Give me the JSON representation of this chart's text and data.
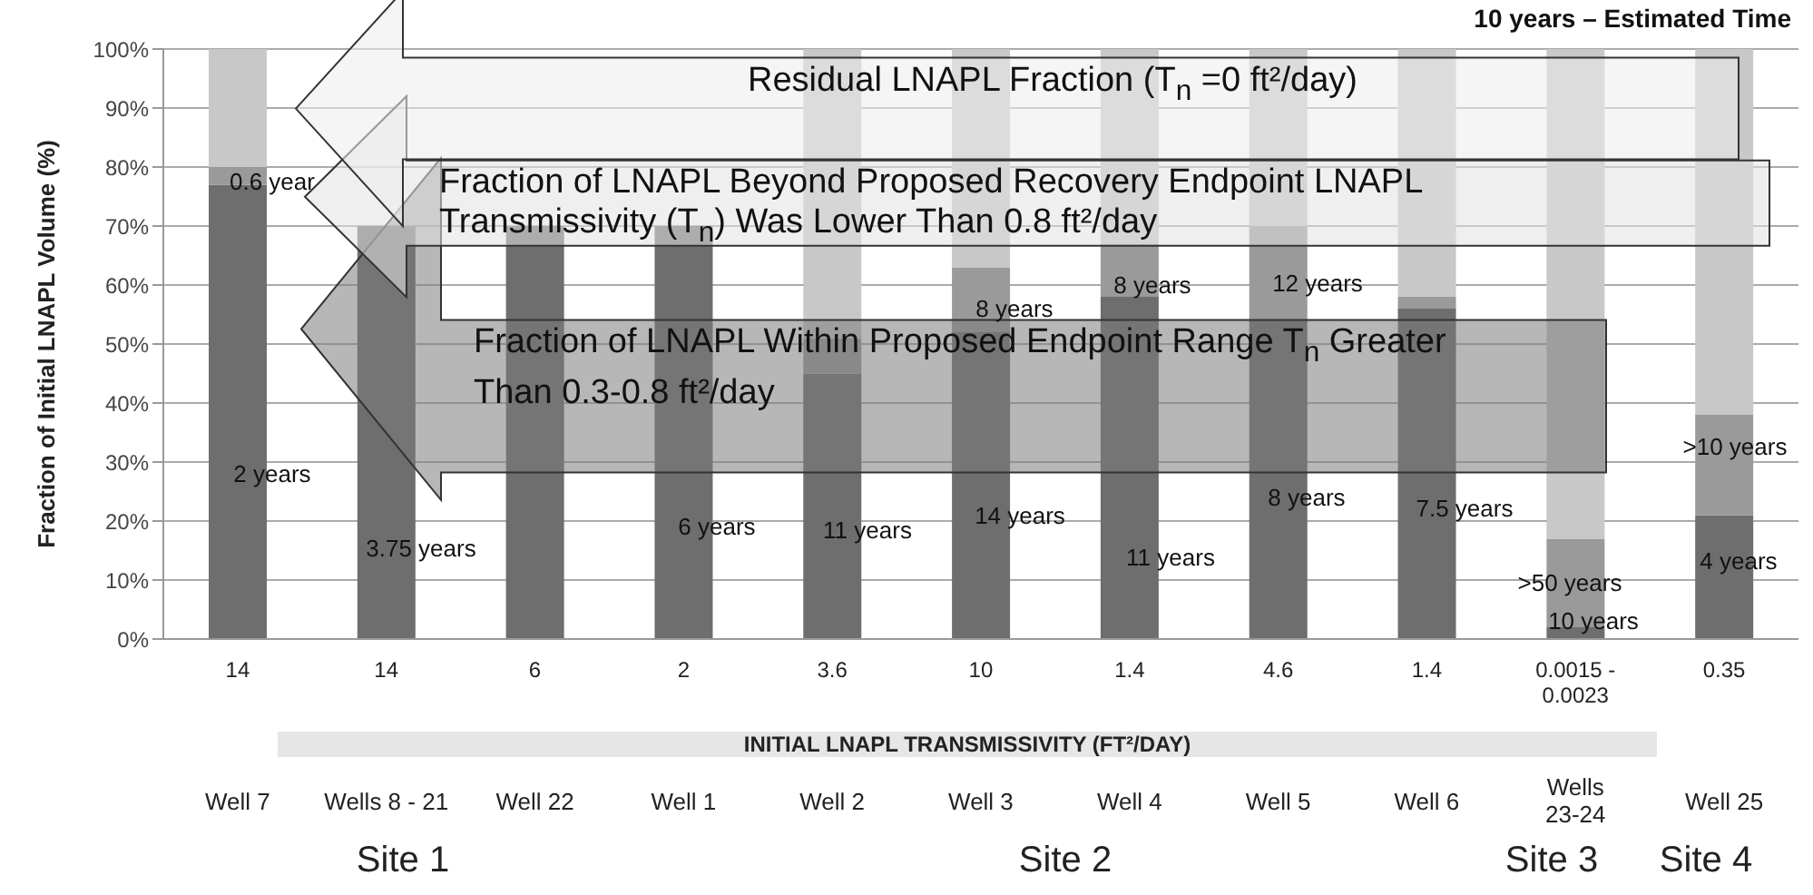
{
  "chart_data": {
    "type": "bar",
    "stacked": true,
    "title": "10 years – Estimated Time",
    "xlabel": "INITIAL LNAPL TRANSMISSIVITY (FT²/DAY)",
    "ylabel": "Fraction of  Initial LNAPL Volume (%)",
    "categories": [
      "Well 7",
      "Wells 8 - 21",
      "Well 22",
      "Well 1",
      "Well 2",
      "Well 3",
      "Well 4",
      "Well 5",
      "Well 6",
      "Wells 23-24",
      "Well 25"
    ],
    "series": [
      {
        "color": "#6e6e6e",
        "values": [
          77,
          70,
          70,
          70,
          45,
          52,
          58,
          54,
          56,
          2,
          21
        ]
      },
      {
        "color": "#9a9a9a",
        "values": [
          3,
          null,
          null,
          null,
          6,
          11,
          9,
          16,
          2,
          15,
          17
        ]
      },
      {
        "color": "#c8c8c8",
        "values": [
          20,
          null,
          null,
          null,
          49,
          37,
          33,
          30,
          42,
          83,
          62
        ]
      }
    ],
    "ylim": [
      0,
      100
    ],
    "yticks": [
      {
        "value": 0,
        "label": "0%"
      },
      {
        "value": 10,
        "label": "10%"
      },
      {
        "value": 20,
        "label": "20%"
      },
      {
        "value": 30,
        "label": "30%"
      },
      {
        "value": 40,
        "label": "40%"
      },
      {
        "value": 50,
        "label": "50%"
      },
      {
        "value": 60,
        "label": "60%"
      },
      {
        "value": 70,
        "label": "70%"
      },
      {
        "value": 80,
        "label": "80%"
      },
      {
        "value": 90,
        "label": "90%"
      },
      {
        "value": 100,
        "label": "100%"
      }
    ],
    "grid": "y",
    "legend": false,
    "annotations": [
      "Residual LNAPL Fraction (T$_{n}$ =0 ft²/day)",
      "Fraction of LNAPL Beyond Proposed Recovery Endpoint LNAPL Transmissivity (T$_{n}$) Was Lower Than 0.8 ft²/day",
      "Fraction of LNAPL Within Proposed Endpoint Range T$_{n}$ Greater Than 0.3-0.8 ft²/day",
      "14",
      "14",
      "6",
      "2",
      "3.6",
      "10",
      "1.4",
      "4.6",
      "1.4",
      "0.0015 - 0.0023",
      "0.35",
      "Site 1",
      "Site 2",
      "Site 3",
      "Site 4",
      "2 years",
      "0.6 year",
      "3.75 years",
      "6 years",
      "11 years",
      "14 years",
      "8 years",
      "11 years",
      "8 years",
      "8 years",
      "12 years",
      "7.5 years",
      ">50 years",
      "10 years",
      ">10 years",
      "4 years"
    ]
  }
}
